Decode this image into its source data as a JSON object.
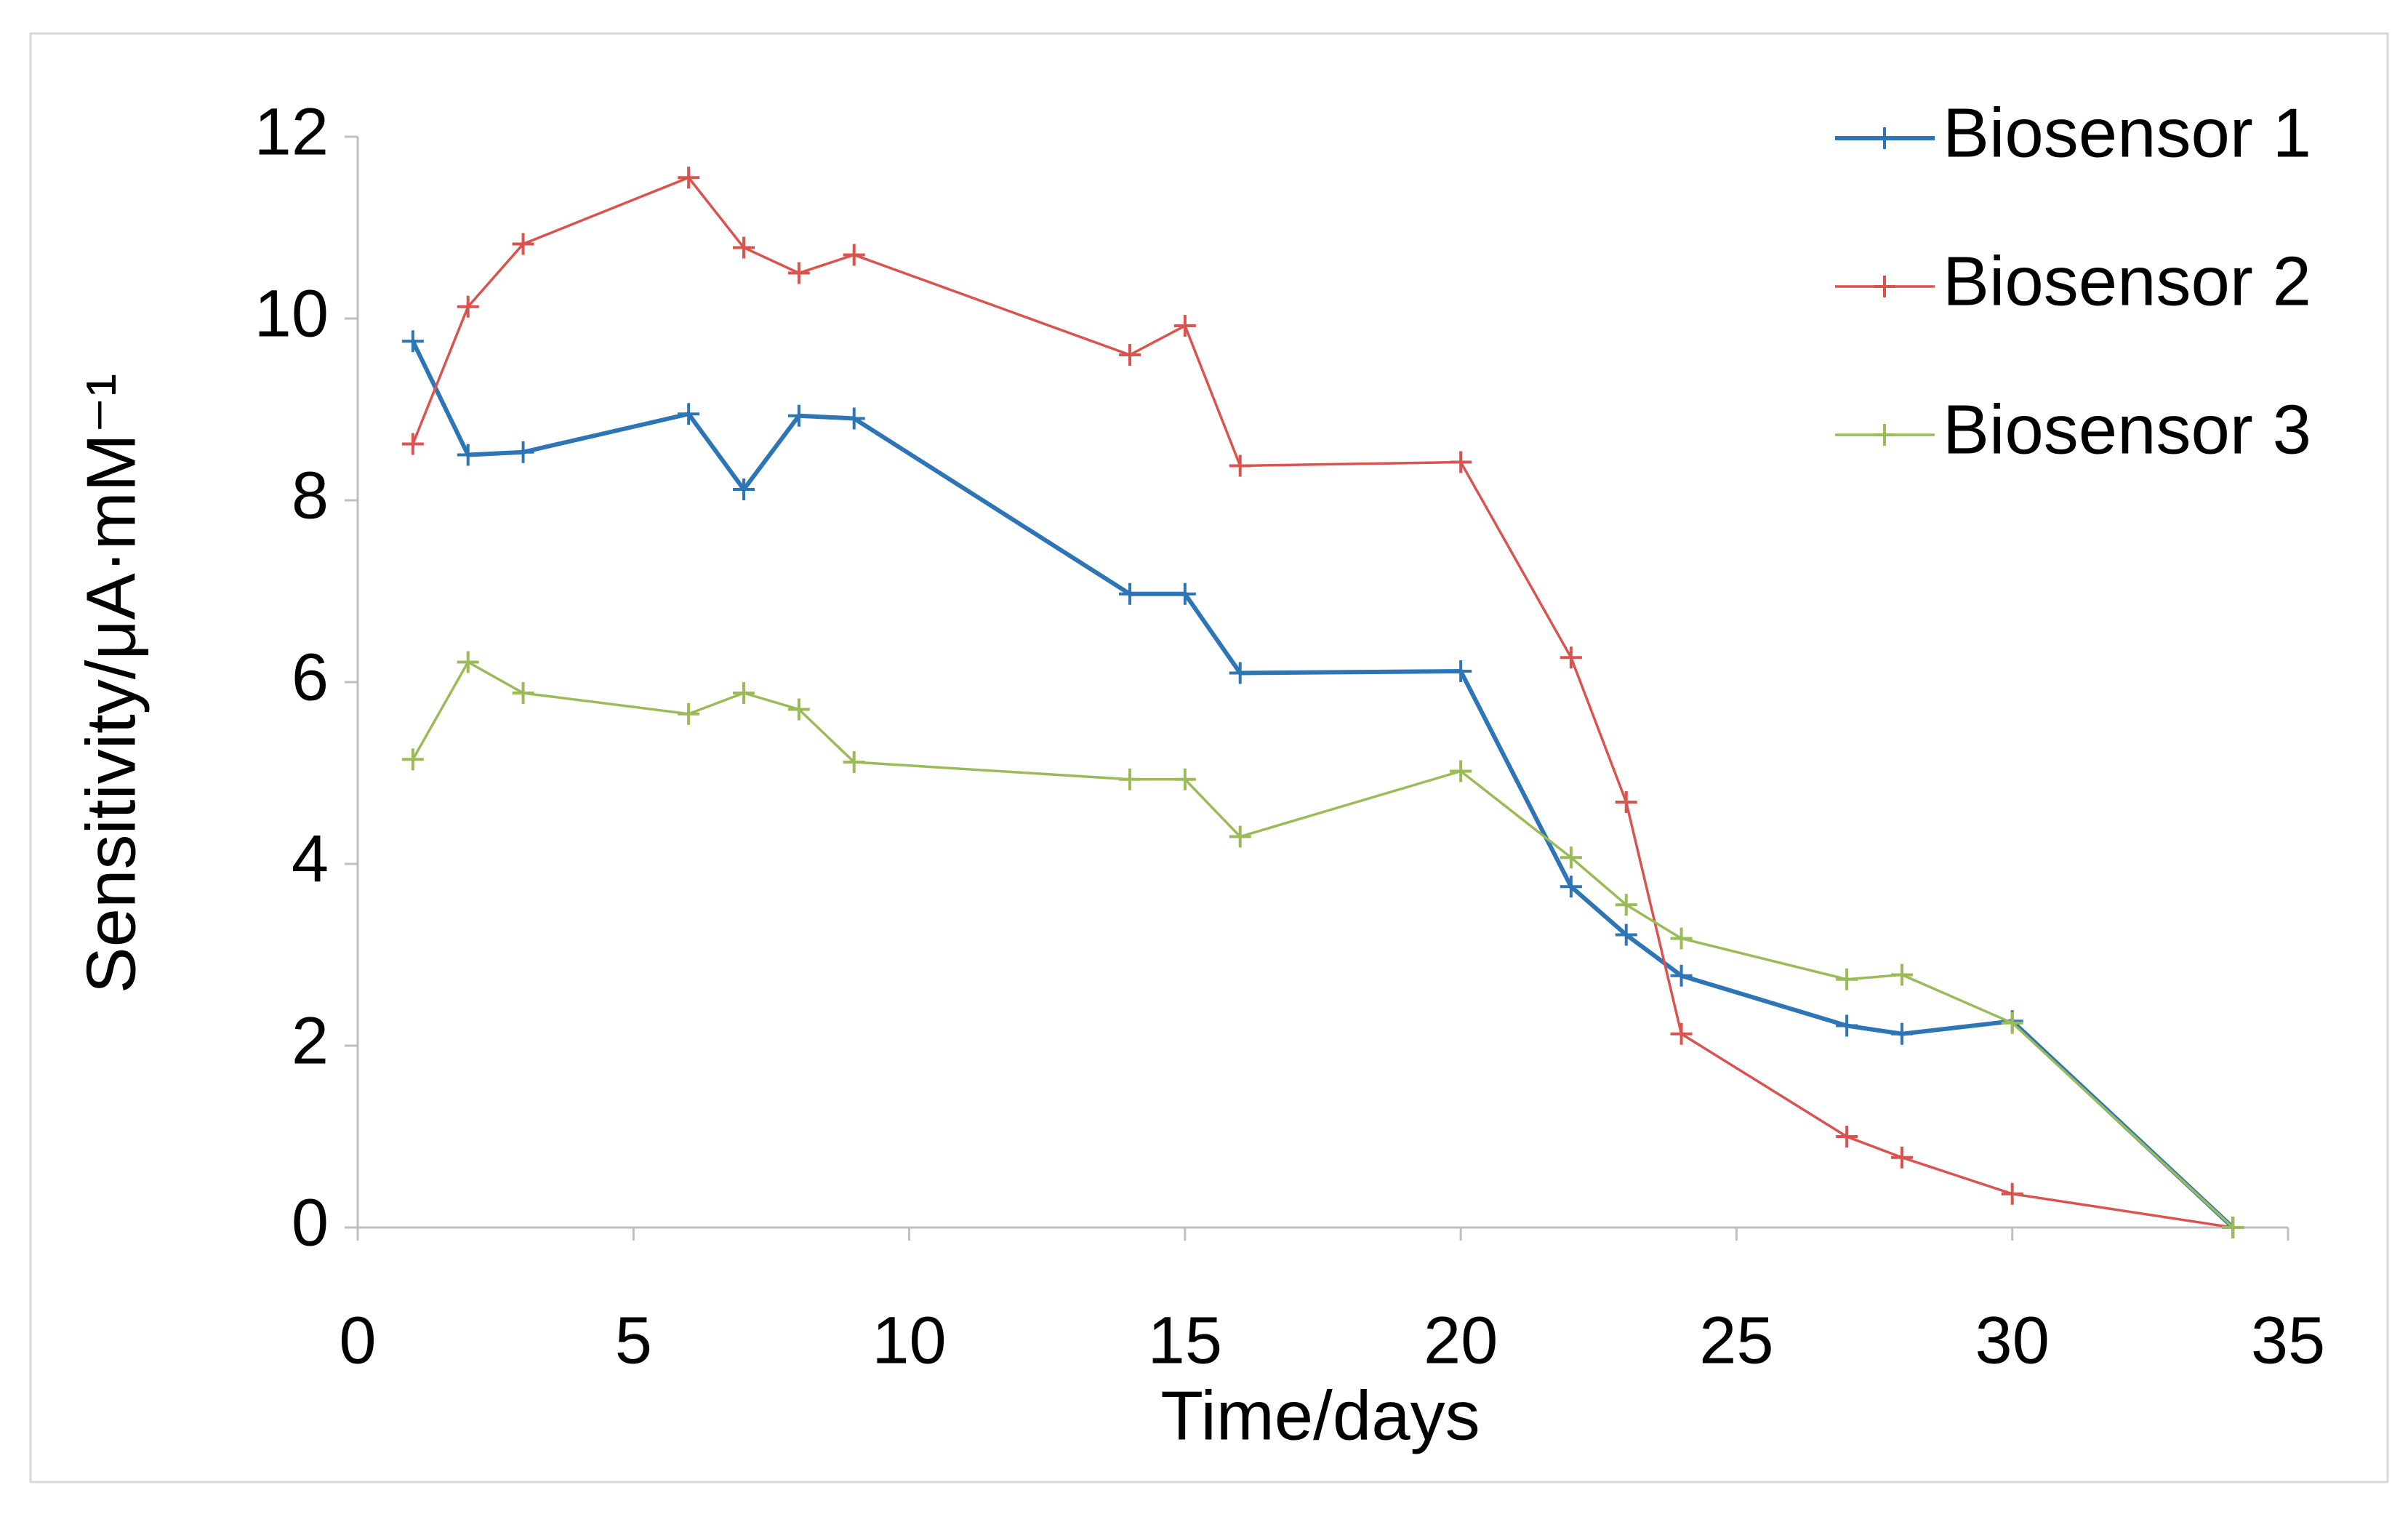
{
  "chart_data": {
    "type": "line",
    "x_label": "Time/days",
    "y_label": "Sensitivity/μA·mM⁻¹",
    "x": [
      1,
      2,
      3,
      6,
      7,
      8,
      9,
      14,
      15,
      16,
      20,
      22,
      23,
      24,
      27,
      28,
      30,
      34
    ],
    "series": [
      {
        "name": "Biosensor 1",
        "color": "#2e75b6",
        "values": [
          9.75,
          8.5,
          8.53,
          8.95,
          8.12,
          8.93,
          8.9,
          6.97,
          6.97,
          6.1,
          6.12,
          3.75,
          3.22,
          2.77,
          2.22,
          2.13,
          2.27,
          0
        ]
      },
      {
        "name": "Biosensor 2",
        "color": "#d9534f",
        "values": [
          8.62,
          10.13,
          10.82,
          11.55,
          10.78,
          10.5,
          10.7,
          9.6,
          9.92,
          8.38,
          8.42,
          6.27,
          4.68,
          2.13,
          1.0,
          0.77,
          0.37,
          0
        ]
      },
      {
        "name": "Biosensor 3",
        "color": "#9bbb59",
        "values": [
          5.15,
          6.22,
          5.88,
          5.65,
          5.88,
          5.7,
          5.12,
          4.93,
          4.93,
          4.3,
          5.02,
          4.07,
          3.55,
          3.18,
          2.73,
          2.78,
          2.25,
          0
        ]
      }
    ],
    "xlim": [
      0,
      35
    ],
    "xticks": [
      0,
      5,
      10,
      15,
      20,
      25,
      30,
      35
    ],
    "ylim": [
      0,
      12
    ],
    "yticks": [
      0,
      2,
      4,
      6,
      8,
      10,
      12
    ],
    "grid": false,
    "legend": "upper right"
  }
}
